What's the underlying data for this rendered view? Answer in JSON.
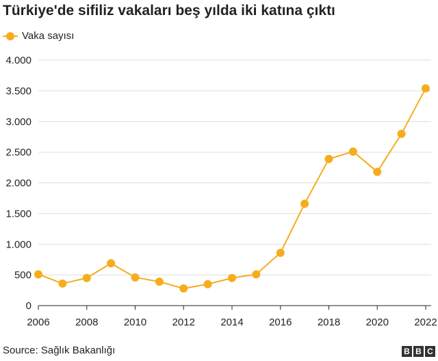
{
  "title": "Türkiye'de sifiliz vakaları beş yılda iki katına çıktı",
  "legend": {
    "label": "Vaka sayısı"
  },
  "source": "Source: Sağlık Bakanlığı",
  "logo": {
    "letters": [
      "B",
      "B",
      "C"
    ]
  },
  "colors": {
    "series": "#f5ad1d",
    "grid": "#dddddd",
    "axis": "#222222"
  },
  "chart_data": {
    "type": "line",
    "title": "Türkiye'de sifiliz vakaları beş yılda iki katına çıktı",
    "xlabel": "",
    "ylabel": "",
    "xlim": [
      2006,
      2022
    ],
    "ylim": [
      0,
      4000
    ],
    "grid": true,
    "legend_position": "top-left",
    "x_ticks": [
      "2006",
      "2008",
      "2010",
      "2012",
      "2014",
      "2016",
      "2018",
      "2020",
      "2022"
    ],
    "y_ticks": [
      {
        "value": 0,
        "label": "0"
      },
      {
        "value": 500,
        "label": "500"
      },
      {
        "value": 1000,
        "label": "1.000"
      },
      {
        "value": 1500,
        "label": "1.500"
      },
      {
        "value": 2000,
        "label": "2.000"
      },
      {
        "value": 2500,
        "label": "2.500"
      },
      {
        "value": 3000,
        "label": "3.000"
      },
      {
        "value": 3500,
        "label": "3.500"
      },
      {
        "value": 4000,
        "label": "4.000"
      }
    ],
    "series": [
      {
        "name": "Vaka sayısı",
        "x": [
          2006,
          2007,
          2008,
          2009,
          2010,
          2011,
          2012,
          2013,
          2014,
          2015,
          2016,
          2017,
          2018,
          2019,
          2020,
          2021,
          2022
        ],
        "values": [
          510,
          360,
          450,
          690,
          460,
          390,
          280,
          350,
          450,
          510,
          860,
          1660,
          2390,
          2510,
          2180,
          2800,
          3540
        ]
      }
    ]
  }
}
